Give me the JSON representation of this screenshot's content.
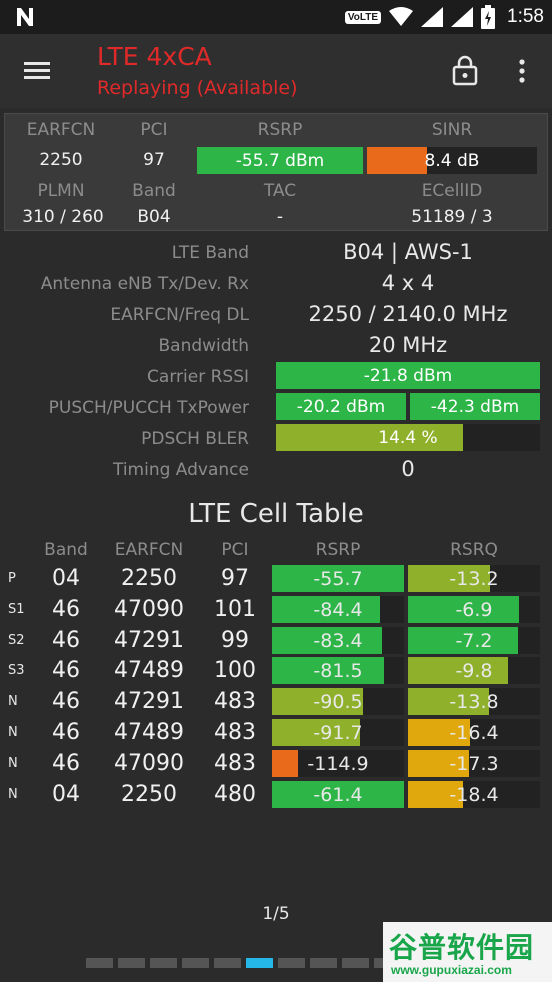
{
  "status_bar": {
    "volte": "VoLTE",
    "clock": "1:58"
  },
  "app_bar": {
    "title": "LTE 4xCA",
    "subtitle": "Replaying (Available)"
  },
  "summary": {
    "headers": [
      "EARFCN",
      "PCI",
      "RSRP",
      "SINR"
    ],
    "earfcn": "2250",
    "pci": "97",
    "rsrp": {
      "text": "-55.7 dBm",
      "level": 1.0,
      "color": "#2db548"
    },
    "sinr": {
      "text": "8.4 dB",
      "level": 0.35,
      "color": "#e86a1a"
    },
    "headers2": [
      "PLMN",
      "Band",
      "TAC",
      "ECellID"
    ],
    "plmn": "310 / 260",
    "band": "B04",
    "tac": "-",
    "ecellid": "51189 / 3"
  },
  "details": {
    "lte_band_label": "LTE Band",
    "lte_band": "B04 | AWS-1",
    "antenna_label": "Antenna eNB Tx/Dev. Rx",
    "antenna": "4 x 4",
    "earfcn_label": "EARFCN/Freq DL",
    "earfcn": "2250 / 2140.0 MHz",
    "bandwidth_label": "Bandwidth",
    "bandwidth": "20 MHz",
    "rssi_label": "Carrier RSSI",
    "rssi": {
      "text": "-21.8 dBm",
      "level": 1.0,
      "color": "#2db548"
    },
    "txpower_label": "PUSCH/PUCCH TxPower",
    "pusch": {
      "text": "-20.2 dBm",
      "level": 1.0,
      "color": "#2db548"
    },
    "pucch": {
      "text": "-42.3 dBm",
      "level": 1.0,
      "color": "#2db548"
    },
    "bler_label": "PDSCH BLER",
    "bler": {
      "text": "14.4 %",
      "level": 0.71,
      "color": "#8fb02a"
    },
    "ta_label": "Timing Advance",
    "ta": "0"
  },
  "cell_table": {
    "title": "LTE Cell Table",
    "headers": [
      "Band",
      "EARFCN",
      "PCI",
      "RSRP",
      "RSRQ"
    ],
    "rows": [
      {
        "type": "P",
        "band": "04",
        "earfcn": "2250",
        "pci": "97",
        "rsrp": "-55.7",
        "rsrp_level": 1.0,
        "rsrp_color": "#2db548",
        "rsrq": "-13.2",
        "rsrq_level": 0.62,
        "rsrq_color": "#8fb02a"
      },
      {
        "type": "S1",
        "band": "46",
        "earfcn": "47090",
        "pci": "101",
        "rsrp": "-84.4",
        "rsrp_level": 0.82,
        "rsrp_color": "#2db548",
        "rsrq": "-6.9",
        "rsrq_level": 0.84,
        "rsrq_color": "#2db548"
      },
      {
        "type": "S2",
        "band": "46",
        "earfcn": "47291",
        "pci": "99",
        "rsrp": "-83.4",
        "rsrp_level": 0.83,
        "rsrp_color": "#2db548",
        "rsrq": "-7.2",
        "rsrq_level": 0.83,
        "rsrq_color": "#2db548"
      },
      {
        "type": "S3",
        "band": "46",
        "earfcn": "47489",
        "pci": "100",
        "rsrp": "-81.5",
        "rsrp_level": 0.85,
        "rsrp_color": "#2db548",
        "rsrq": "-9.8",
        "rsrq_level": 0.76,
        "rsrq_color": "#8fb02a"
      },
      {
        "type": "N",
        "band": "46",
        "earfcn": "47291",
        "pci": "483",
        "rsrp": "-90.5",
        "rsrp_level": 0.69,
        "rsrp_color": "#8fb02a",
        "rsrq": "-13.8",
        "rsrq_level": 0.61,
        "rsrq_color": "#8fb02a"
      },
      {
        "type": "N",
        "band": "46",
        "earfcn": "47489",
        "pci": "483",
        "rsrp": "-91.7",
        "rsrp_level": 0.67,
        "rsrp_color": "#8fb02a",
        "rsrq": "-16.4",
        "rsrq_level": 0.47,
        "rsrq_color": "#e0a80c"
      },
      {
        "type": "N",
        "band": "46",
        "earfcn": "47090",
        "pci": "483",
        "rsrp": "-114.9",
        "rsrp_level": 0.2,
        "rsrp_color": "#e86a1a",
        "rsrq": "-17.3",
        "rsrq_level": 0.46,
        "rsrq_color": "#e0a80c"
      },
      {
        "type": "N",
        "band": "04",
        "earfcn": "2250",
        "pci": "480",
        "rsrp": "-61.4",
        "rsrp_level": 1.0,
        "rsrp_color": "#2db548",
        "rsrq": "-18.4",
        "rsrq_level": 0.42,
        "rsrq_color": "#e0a80c"
      }
    ]
  },
  "pager": {
    "label": "1/5",
    "count": 10,
    "active_index": 5
  },
  "watermark": {
    "main": "谷普软件园",
    "url": "www.gupuxiazai.com"
  }
}
